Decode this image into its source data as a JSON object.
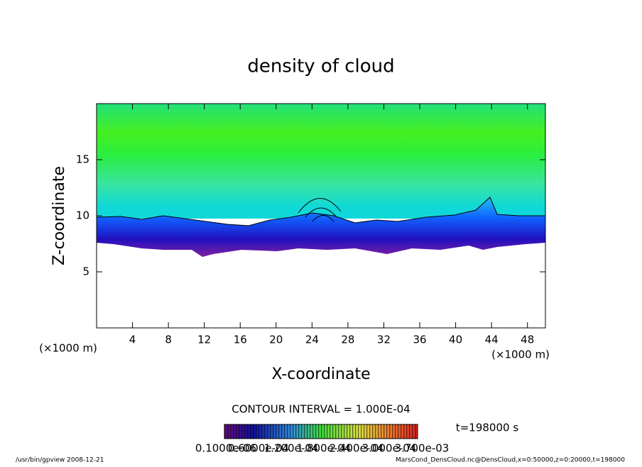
{
  "chart_data": {
    "type": "contour",
    "title": "density of cloud",
    "x_label": "X-coordinate",
    "y_label": "Z-coordinate",
    "x_unit": "(×1000 m)",
    "y_unit": "(×1000 m)",
    "xlim": [
      0,
      50
    ],
    "xticks": [
      4,
      8,
      12,
      16,
      20,
      24,
      28,
      32,
      36,
      40,
      44,
      48
    ],
    "ylim": [
      0,
      20
    ],
    "yticks": [
      5,
      10,
      15
    ],
    "contour_interval": "CONTOUR INTERVAL = 1.000E-04",
    "colorbar_labels": [
      "0.1000e-06",
      "0.6000e-04",
      "1.200e-04",
      "1.800e-04",
      "2.400e-04",
      "3.000e-04",
      "3.700e-03"
    ],
    "time_label": "t=198000 s",
    "footer_left": "/usr/bin/gpview   2008-12-21",
    "footer_right": "MarsCond_DensCloud.nc@DensCloud,x=0:50000,z=0:20000,t=198000"
  }
}
